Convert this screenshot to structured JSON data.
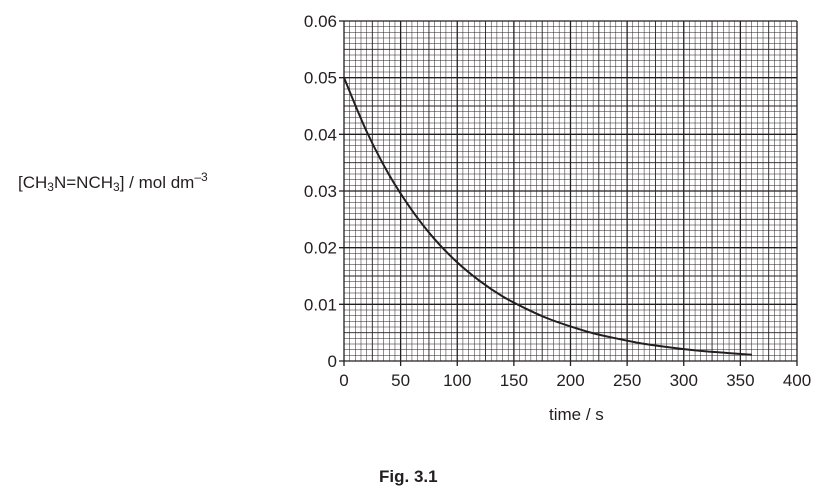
{
  "chart_data": {
    "type": "line",
    "caption": "Fig. 3.1",
    "xlabel": "time / s",
    "ylabel": {
      "p1": "[CH",
      "s1": "3",
      "p2": "N=NCH",
      "s2": "3",
      "p3": "] / mol dm",
      "sup": "–3"
    },
    "xlim": [
      0,
      400
    ],
    "ylim": [
      0,
      0.06
    ],
    "x_ticks": [
      "0",
      "50",
      "100",
      "150",
      "200",
      "250",
      "300",
      "350",
      "400"
    ],
    "y_ticks": [
      "0",
      "0.01",
      "0.02",
      "0.03",
      "0.04",
      "0.05",
      "0.06"
    ],
    "grid": true,
    "series": [
      {
        "x": [
          0,
          20,
          40,
          60,
          80,
          100,
          120,
          140,
          160,
          180,
          200,
          220,
          240,
          260,
          280,
          300,
          320,
          340,
          360
        ],
        "y": [
          0.05,
          0.0405,
          0.0328,
          0.0266,
          0.0215,
          0.0174,
          0.0141,
          0.0114,
          0.0093,
          0.0075,
          0.0061,
          0.0049,
          0.004,
          0.0032,
          0.0026,
          0.0021,
          0.0017,
          0.0014,
          0.0011
        ]
      }
    ]
  }
}
